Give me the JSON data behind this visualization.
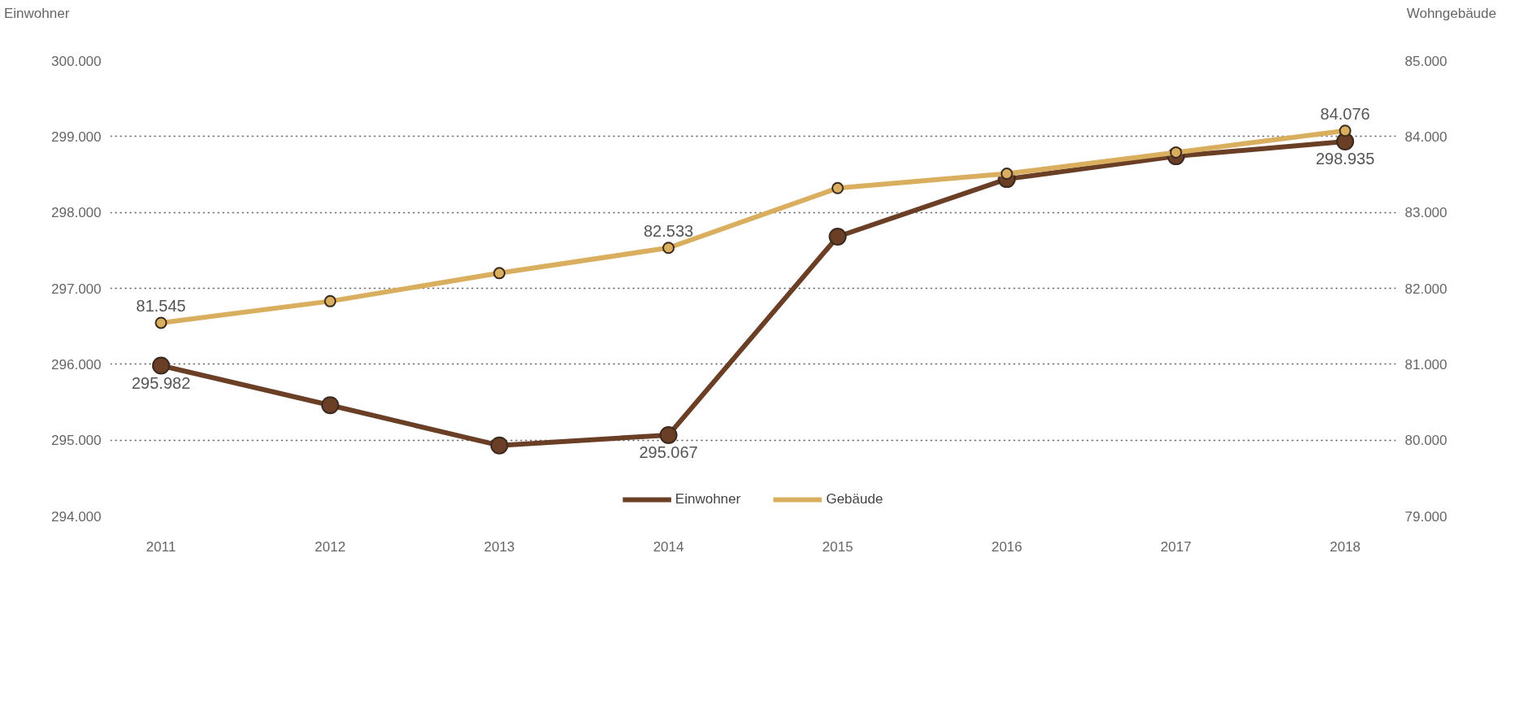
{
  "chart_data": {
    "type": "line",
    "ylabel": "Einwohner",
    "y2label": "Wohngebäude",
    "categories": [
      "2011",
      "2012",
      "2013",
      "2014",
      "2015",
      "2016",
      "2017",
      "2018"
    ],
    "series": [
      {
        "name": "Einwohner",
        "color": "#6b3f26",
        "values": [
          295982,
          295460,
          294930,
          295067,
          297680,
          298440,
          298740,
          298935
        ],
        "value_labels": [
          "295.982",
          null,
          null,
          "295.067",
          null,
          null,
          null,
          "298.935"
        ]
      },
      {
        "name": "Gebäude",
        "color": "#d9ae5e",
        "axis": "y2",
        "values": [
          81545,
          81830,
          82200,
          82533,
          83320,
          83510,
          83790,
          84076
        ],
        "value_labels": [
          "81.545",
          null,
          null,
          "82.533",
          null,
          null,
          null,
          "84.076"
        ]
      }
    ],
    "ylim": [
      294000,
      300000
    ],
    "yticks": [
      {
        "value": 294000,
        "label": "294.000"
      },
      {
        "value": 295000,
        "label": "295.000"
      },
      {
        "value": 296000,
        "label": "296.000"
      },
      {
        "value": 297000,
        "label": "297.000"
      },
      {
        "value": 298000,
        "label": "298.000"
      },
      {
        "value": 299000,
        "label": "299.000"
      },
      {
        "value": 300000,
        "label": "300.000"
      }
    ],
    "y2lim": [
      79000,
      85000
    ],
    "y2ticks": [
      {
        "value": 79000,
        "label": "79.000"
      },
      {
        "value": 80000,
        "label": "80.000"
      },
      {
        "value": 81000,
        "label": "81.000"
      },
      {
        "value": 82000,
        "label": "82.000"
      },
      {
        "value": 83000,
        "label": "83.000"
      },
      {
        "value": 84000,
        "label": "84.000"
      },
      {
        "value": 85000,
        "label": "85.000"
      }
    ],
    "grid": "y",
    "legend": "bottom",
    "marker": "circle",
    "line_style": "solid"
  }
}
